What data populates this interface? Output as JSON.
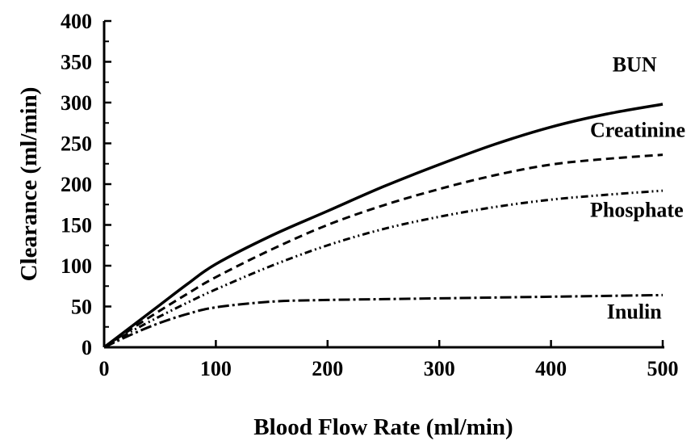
{
  "chart_data": {
    "type": "line",
    "title": "",
    "xlabel": "Blood Flow Rate (ml/min)",
    "ylabel": "Clearance (ml/min)",
    "xlim": [
      0,
      500
    ],
    "ylim": [
      0,
      400
    ],
    "xticks": [
      0,
      100,
      200,
      300,
      400,
      500
    ],
    "yticks": [
      0,
      50,
      100,
      150,
      200,
      250,
      300,
      350,
      400
    ],
    "grid": false,
    "legend": "inline labels at right end of curves",
    "series": [
      {
        "name": "BUN",
        "style": "solid",
        "x": [
          0,
          25,
          50,
          75,
          100,
          150,
          200,
          250,
          300,
          350,
          400,
          450,
          500
        ],
        "y": [
          0,
          26,
          52,
          78,
          102,
          137,
          167,
          197,
          224,
          249,
          270,
          286,
          298
        ]
      },
      {
        "name": "Creatinine",
        "style": "dashed",
        "x": [
          0,
          25,
          50,
          75,
          100,
          150,
          200,
          250,
          300,
          350,
          400,
          450,
          500
        ],
        "y": [
          0,
          23,
          45,
          66,
          86,
          120,
          150,
          174,
          194,
          211,
          224,
          231,
          236
        ]
      },
      {
        "name": "Phosphate",
        "style": "dash-dot-dot",
        "x": [
          0,
          25,
          50,
          75,
          100,
          150,
          200,
          250,
          300,
          350,
          400,
          450,
          500
        ],
        "y": [
          0,
          20,
          38,
          55,
          71,
          100,
          125,
          145,
          160,
          172,
          181,
          187,
          192
        ]
      },
      {
        "name": "Inulin",
        "style": "dash-dot",
        "x": [
          0,
          25,
          50,
          75,
          100,
          150,
          200,
          250,
          300,
          350,
          400,
          450,
          500
        ],
        "y": [
          0,
          16,
          30,
          41,
          49,
          56,
          58,
          59,
          60,
          61,
          62,
          63,
          64
        ]
      }
    ],
    "annotations": [
      {
        "text": "BUN",
        "x": 455,
        "y": 338
      },
      {
        "text": "Creatinine",
        "x": 435,
        "y": 258
      },
      {
        "text": "Phosphate",
        "x": 435,
        "y": 160
      },
      {
        "text": "Inulin",
        "x": 450,
        "y": 35
      }
    ]
  }
}
